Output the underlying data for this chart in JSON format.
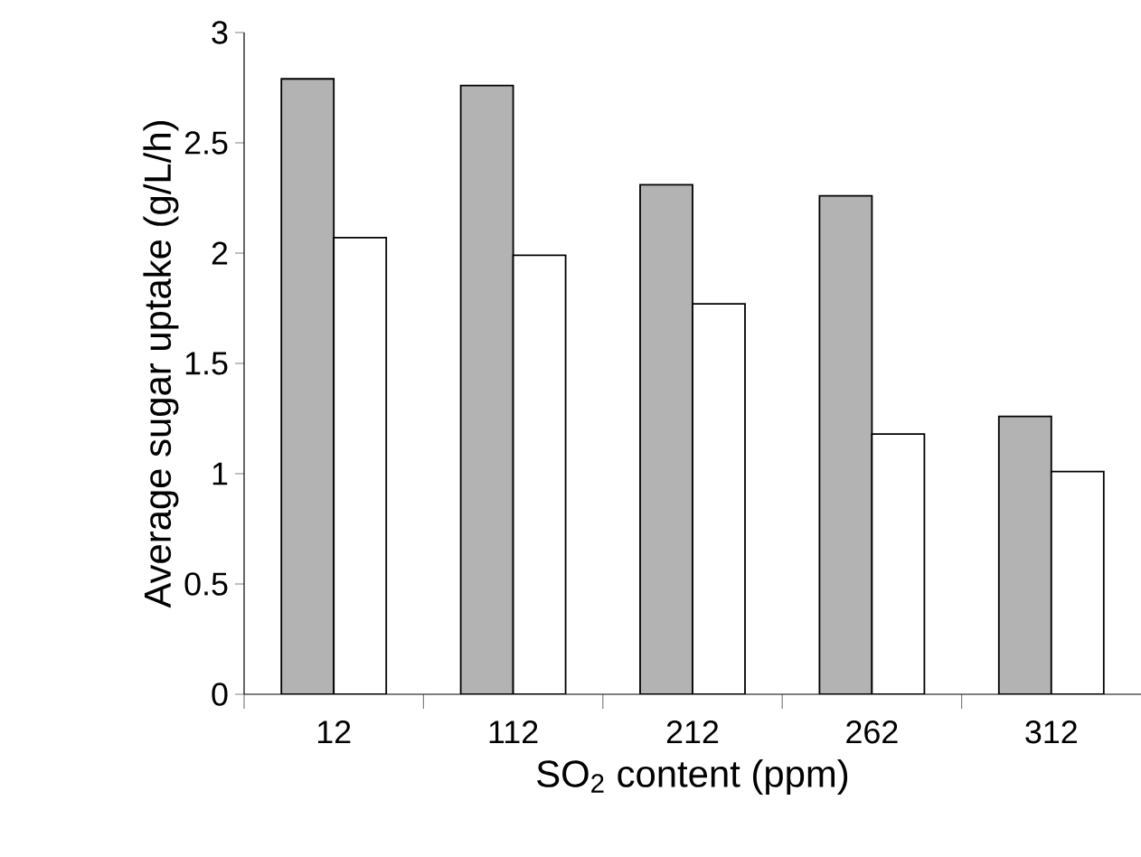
{
  "chart_data": {
    "type": "bar",
    "xlabel": "SO$_{2}$ content (ppm)",
    "ylabel": "Average sugar uptake (g/L/h)",
    "categories": [
      "12",
      "112",
      "212",
      "262",
      "312"
    ],
    "series": [
      {
        "color": "#b3b3b3",
        "values": [
          2.79,
          2.76,
          2.31,
          2.26,
          1.26
        ]
      },
      {
        "color": "#ffffff",
        "values": [
          2.07,
          1.99,
          1.77,
          1.18,
          1.01
        ]
      }
    ],
    "ylim": [
      0,
      3
    ],
    "yticks": [
      0,
      0.5,
      1,
      1.5,
      2,
      2.5,
      3
    ]
  }
}
